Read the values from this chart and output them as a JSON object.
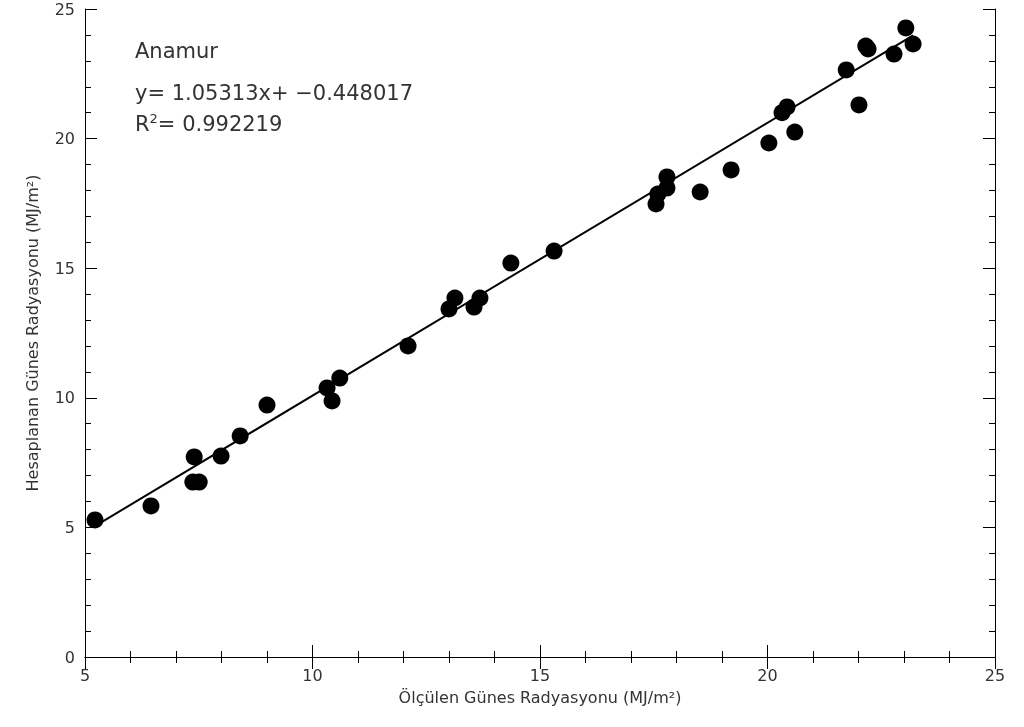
{
  "chart_data": {
    "type": "scatter",
    "xlabel": "Ölçülen Günes Radyasyonu (MJ/m²)",
    "ylabel": "Hesaplanan Günes Radyasyonu (MJ/m²)",
    "annotations": [
      "Anamur",
      "y= 1.05313x+ −0.448017",
      "R$^{2}$= 0.992219"
    ],
    "xlim": [
      5,
      25
    ],
    "xticks": [
      5,
      10,
      15,
      20,
      25
    ],
    "ylim": [
      0,
      25
    ],
    "yticks": [
      0,
      5,
      10,
      15,
      20,
      25
    ],
    "marker": "circle",
    "series": [
      {
        "color": "#000000",
        "x": [
          5.22,
          6.45,
          7.4,
          7.37,
          7.51,
          7.99,
          8.41,
          9.0,
          10.32,
          10.43,
          10.6,
          12.1,
          13.0,
          13.13,
          13.55,
          13.68,
          14.36,
          15.31,
          17.55,
          17.59,
          17.79,
          17.79,
          18.52,
          19.2,
          20.03,
          20.6,
          20.32,
          20.43,
          22.01,
          21.73,
          22.16,
          22.21,
          22.78,
          23.04,
          23.2
        ],
        "values": [
          5.29,
          5.83,
          7.72,
          6.75,
          6.75,
          7.75,
          8.53,
          9.72,
          10.38,
          9.88,
          10.76,
          12.0,
          13.43,
          13.85,
          13.5,
          13.85,
          15.2,
          15.66,
          17.48,
          17.86,
          18.09,
          18.52,
          17.94,
          18.79,
          19.83,
          20.25,
          21.0,
          21.22,
          21.3,
          22.65,
          23.57,
          23.46,
          23.26,
          24.27,
          23.65
        ]
      },
      {
        "type": "line",
        "color": "#000000",
        "marker": "none",
        "x": [
          5.2,
          23.2
        ],
        "values": [
          5.03,
          23.98
        ]
      }
    ]
  }
}
